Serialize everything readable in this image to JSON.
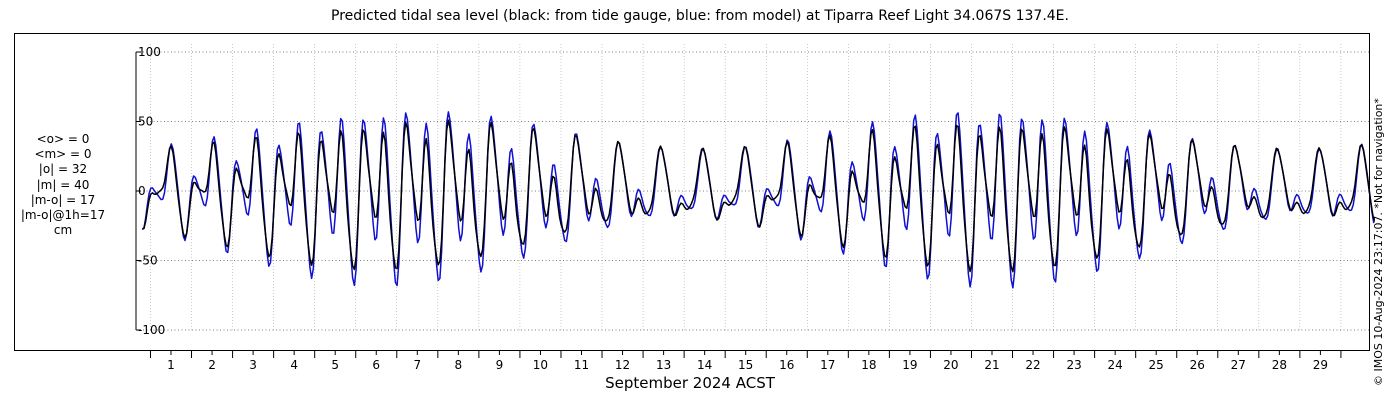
{
  "chart_data": {
    "type": "line",
    "title": "Predicted tidal sea level (black: from tide gauge, blue: from model) at Tiparra Reef Light 34.067S 137.4E.",
    "xlabel": "September 2024 ACST",
    "ylabel": "",
    "ylim": [
      -100,
      100
    ],
    "yticks": [
      -100,
      -50,
      0,
      50,
      100
    ],
    "xlim": [
      0,
      30
    ],
    "xticks": [
      "1",
      "2",
      "3",
      "4",
      "5",
      "6",
      "7",
      "8",
      "9",
      "10",
      "11",
      "12",
      "13",
      "14",
      "15",
      "16",
      "17",
      "18",
      "19",
      "20",
      "21",
      "22",
      "23",
      "24",
      "25",
      "26",
      "27",
      "28",
      "29"
    ],
    "grid": true,
    "x_unit": "days since start of 1 September 2024 (ACST), hourly samples",
    "series": [
      {
        "name": "from tide gauge",
        "color": "#000000",
        "values": []
      },
      {
        "name": "from model",
        "color": "#1010d0",
        "values": []
      }
    ]
  },
  "stats": [
    "<o> = 0",
    "<m> = 0",
    "|o| = 32",
    "|m| = 40",
    "|m-o| = 17",
    "|m-o|@1h=17",
    "cm"
  ],
  "credit": "© IMOS 10-Aug-2024 23:17:07. *Not for navigation*",
  "colors": {
    "gauge": "#000000",
    "model": "#1010d0",
    "grid": "#999999"
  }
}
